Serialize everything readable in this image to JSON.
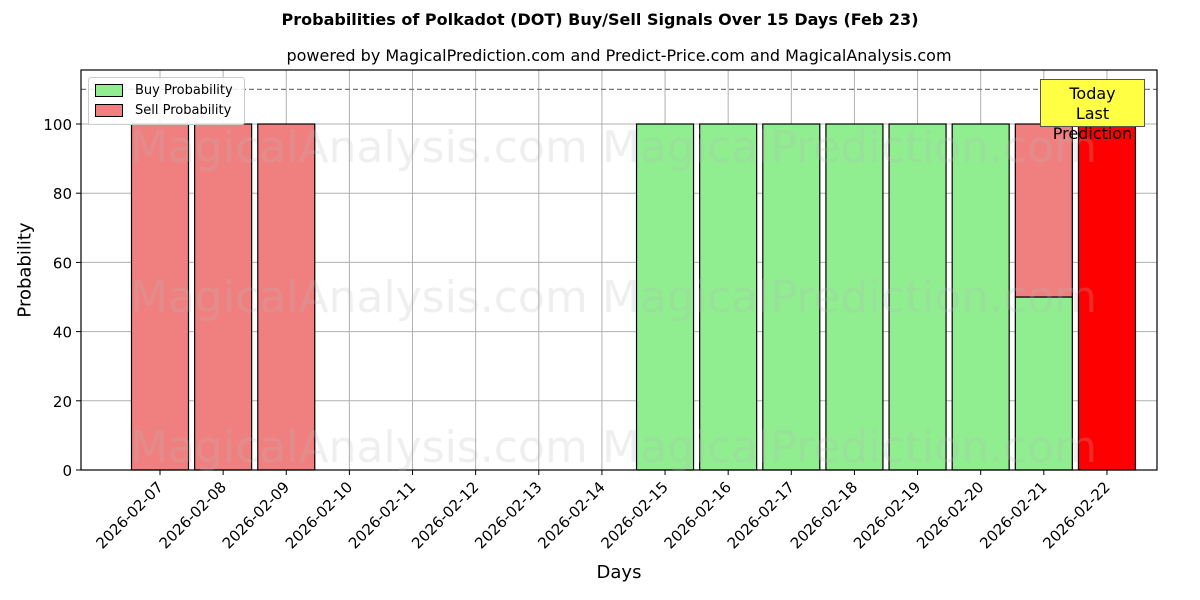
{
  "header": {
    "title": "Probabilities of Polkadot (DOT) Buy/Sell Signals Over 15 Days (Feb 23)",
    "subtitle": "powered by MagicalPrediction.com and Predict-Price.com and MagicalAnalysis.com"
  },
  "legend": {
    "buy_label": "Buy Probability",
    "sell_label": "Sell Probability"
  },
  "annotation": {
    "line1": "Today",
    "line2": "Last Prediction"
  },
  "watermarks": [
    "MagicalAnalysis.com",
    "MagicalPrediction.com"
  ],
  "colors": {
    "buy": "#90ee90",
    "sell": "#f08080",
    "today": "#ff0000",
    "annotation_bg": "#ffff44"
  },
  "chart_data": {
    "type": "bar",
    "stacked": true,
    "title": "Probabilities of Polkadot (DOT) Buy/Sell Signals Over 15 Days (Feb 23)",
    "subtitle": "powered by MagicalPrediction.com and Predict-Price.com and MagicalAnalysis.com",
    "xlabel": "Days",
    "ylabel": "Probability",
    "ylim": [
      0,
      115
    ],
    "yticks": [
      0,
      20,
      40,
      60,
      80,
      100
    ],
    "grid": true,
    "legend_position": "upper left",
    "reference_line": {
      "y": 110,
      "style": "dashed"
    },
    "categories": [
      "2026-02-07",
      "2026-02-08",
      "2026-02-09",
      "2026-02-10",
      "2026-02-11",
      "2026-02-12",
      "2026-02-13",
      "2026-02-14",
      "2026-02-15",
      "2026-02-16",
      "2026-02-17",
      "2026-02-18",
      "2026-02-19",
      "2026-02-20",
      "2026-02-21",
      "2026-02-22"
    ],
    "series": [
      {
        "name": "Buy Probability",
        "values": [
          0,
          0,
          0,
          0,
          0,
          0,
          0,
          0,
          100,
          100,
          100,
          100,
          100,
          100,
          50,
          0
        ]
      },
      {
        "name": "Sell Probability",
        "values": [
          100,
          100,
          100,
          0,
          0,
          0,
          0,
          0,
          0,
          0,
          0,
          0,
          0,
          0,
          50,
          100
        ]
      }
    ],
    "highlight": {
      "category": "2026-02-22",
      "label": "Today / Last Prediction",
      "color": "#ff0000"
    }
  }
}
